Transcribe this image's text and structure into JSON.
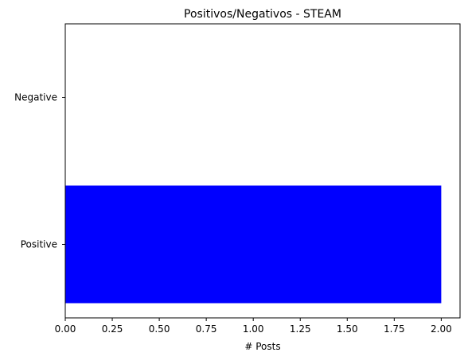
{
  "chart_data": {
    "type": "bar",
    "orientation": "horizontal",
    "title": "Positivos/Negativos - STEAM",
    "xlabel": "# Posts",
    "ylabel": "",
    "categories": [
      "Positive",
      "Negative"
    ],
    "values": [
      2,
      0
    ],
    "xlim": [
      0,
      2.1
    ],
    "xticks": [
      "0.00",
      "0.25",
      "0.50",
      "0.75",
      "1.00",
      "1.25",
      "1.50",
      "1.75",
      "2.00"
    ],
    "bar_color": "#0000ff",
    "grid": false
  }
}
